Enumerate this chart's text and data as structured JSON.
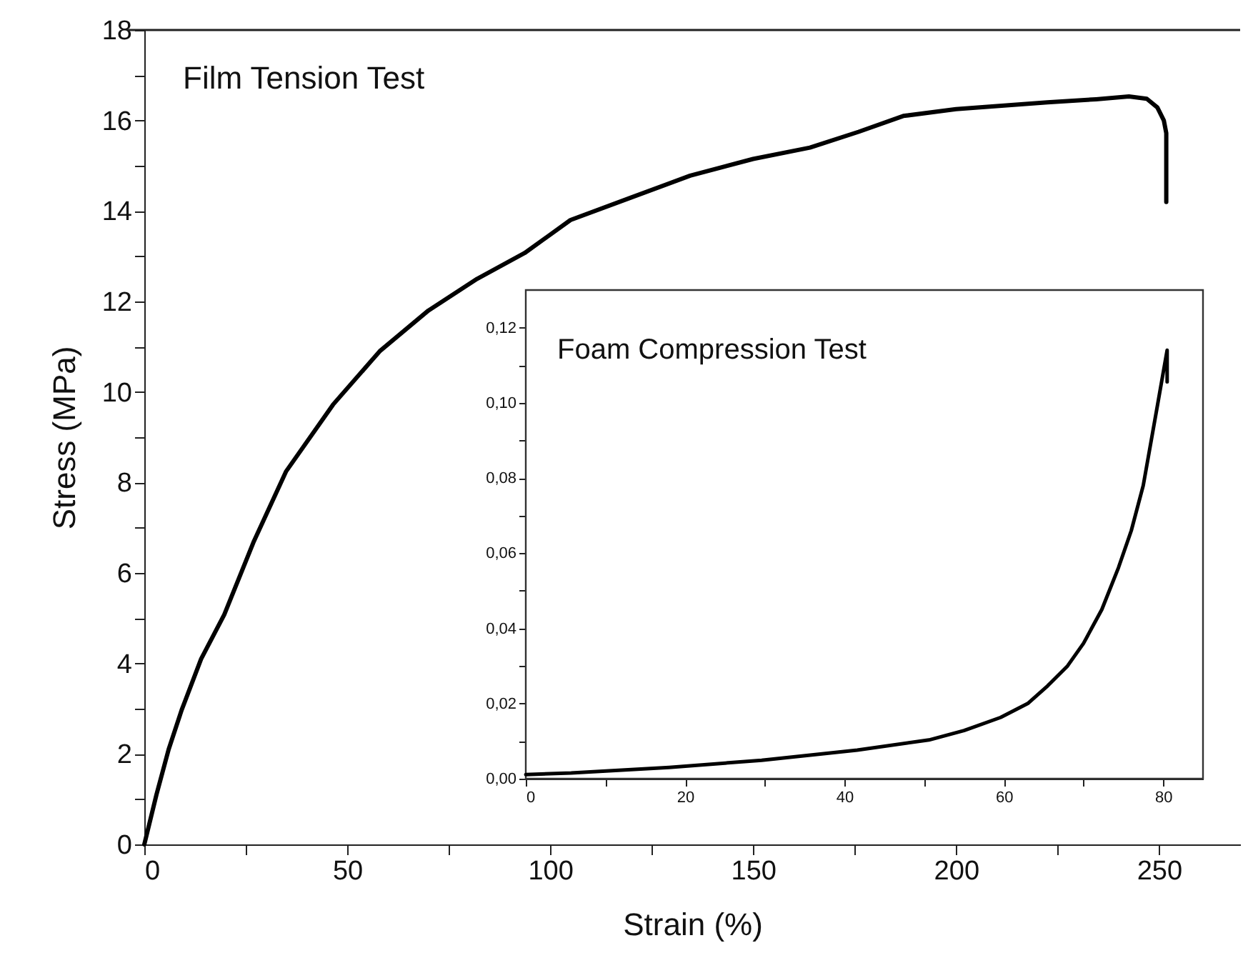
{
  "chart_data": [
    {
      "type": "line",
      "title": "Film Tension Test",
      "xlabel": "Strain (%)",
      "ylabel": "Stress (MPa)",
      "xlim": [
        0,
        270
      ],
      "ylim": [
        0,
        18
      ],
      "xticks": [
        0,
        {
          "value": 25,
          "label": null
        },
        50,
        {
          "value": 75,
          "label": null
        },
        100,
        {
          "value": 125,
          "label": null
        },
        150,
        {
          "value": 175,
          "label": null
        },
        200,
        {
          "value": 225,
          "label": null
        },
        250
      ],
      "yticks": [
        0,
        {
          "value": 1,
          "label": null
        },
        2,
        {
          "value": 3,
          "label": null
        },
        4,
        {
          "value": 5,
          "label": null
        },
        6,
        {
          "value": 7,
          "label": null
        },
        8,
        {
          "value": 9,
          "label": null
        },
        10,
        {
          "value": 11,
          "label": null
        },
        12,
        {
          "value": 13,
          "label": null
        },
        14,
        {
          "value": 15,
          "label": null
        },
        16,
        {
          "value": 17,
          "label": null
        },
        18
      ],
      "series": [
        {
          "color": "#000000",
          "x": [
            0,
            3,
            6,
            9.2,
            14,
            19.7,
            27,
            34.9,
            46.5,
            58,
            70,
            82,
            93.7,
            105,
            120,
            134.5,
            150,
            164,
            176,
            187,
            200,
            222.5,
            234.5,
            242.6,
            247,
            249.6,
            251.2,
            251.8,
            251.8
          ],
          "values": [
            0,
            1.1,
            2.1,
            2.97,
            4.1,
            5.08,
            6.7,
            8.24,
            9.72,
            10.9,
            11.8,
            12.5,
            13.07,
            13.8,
            14.3,
            14.78,
            15.15,
            15.4,
            15.75,
            16.1,
            16.25,
            16.4,
            16.47,
            16.53,
            16.48,
            16.29,
            16.0,
            15.72,
            14.2
          ]
        }
      ]
    },
    {
      "type": "line",
      "title": "Foam Compression Test",
      "xlim": [
        0,
        85
      ],
      "ylim": [
        0,
        0.13
      ],
      "xticks": [
        0,
        {
          "value": 10,
          "label": null
        },
        20,
        {
          "value": 30,
          "label": null
        },
        40,
        {
          "value": 50,
          "label": null
        },
        60,
        {
          "value": 70,
          "label": null
        },
        80
      ],
      "yticks": [
        {
          "value": 0,
          "label": "0,00"
        },
        {
          "value": 0.01,
          "label": null
        },
        {
          "value": 0.02,
          "label": "0,02"
        },
        {
          "value": 0.03,
          "label": null
        },
        {
          "value": 0.04,
          "label": "0,04"
        },
        {
          "value": 0.05,
          "label": null
        },
        {
          "value": 0.06,
          "label": "0,06"
        },
        {
          "value": 0.07,
          "label": null
        },
        {
          "value": 0.08,
          "label": "0,08"
        },
        {
          "value": 0.09,
          "label": null
        },
        {
          "value": 0.1,
          "label": "0,10"
        },
        {
          "value": 0.11,
          "label": null
        },
        {
          "value": 0.12,
          "label": "0,12"
        }
      ],
      "series": [
        {
          "color": "#000000",
          "x": [
            0,
            5.7,
            18,
            29.6,
            41.6,
            50.6,
            55,
            59.6,
            63,
            65.5,
            68,
            70,
            72.3,
            74.4,
            76,
            77.5,
            79.3,
            80.5,
            80.5
          ],
          "values": [
            0.0011,
            0.0015,
            0.003,
            0.0049,
            0.0076,
            0.0103,
            0.0128,
            0.0163,
            0.02,
            0.0247,
            0.03,
            0.036,
            0.045,
            0.0562,
            0.066,
            0.078,
            0.0995,
            0.114,
            0.1056
          ]
        }
      ]
    }
  ]
}
